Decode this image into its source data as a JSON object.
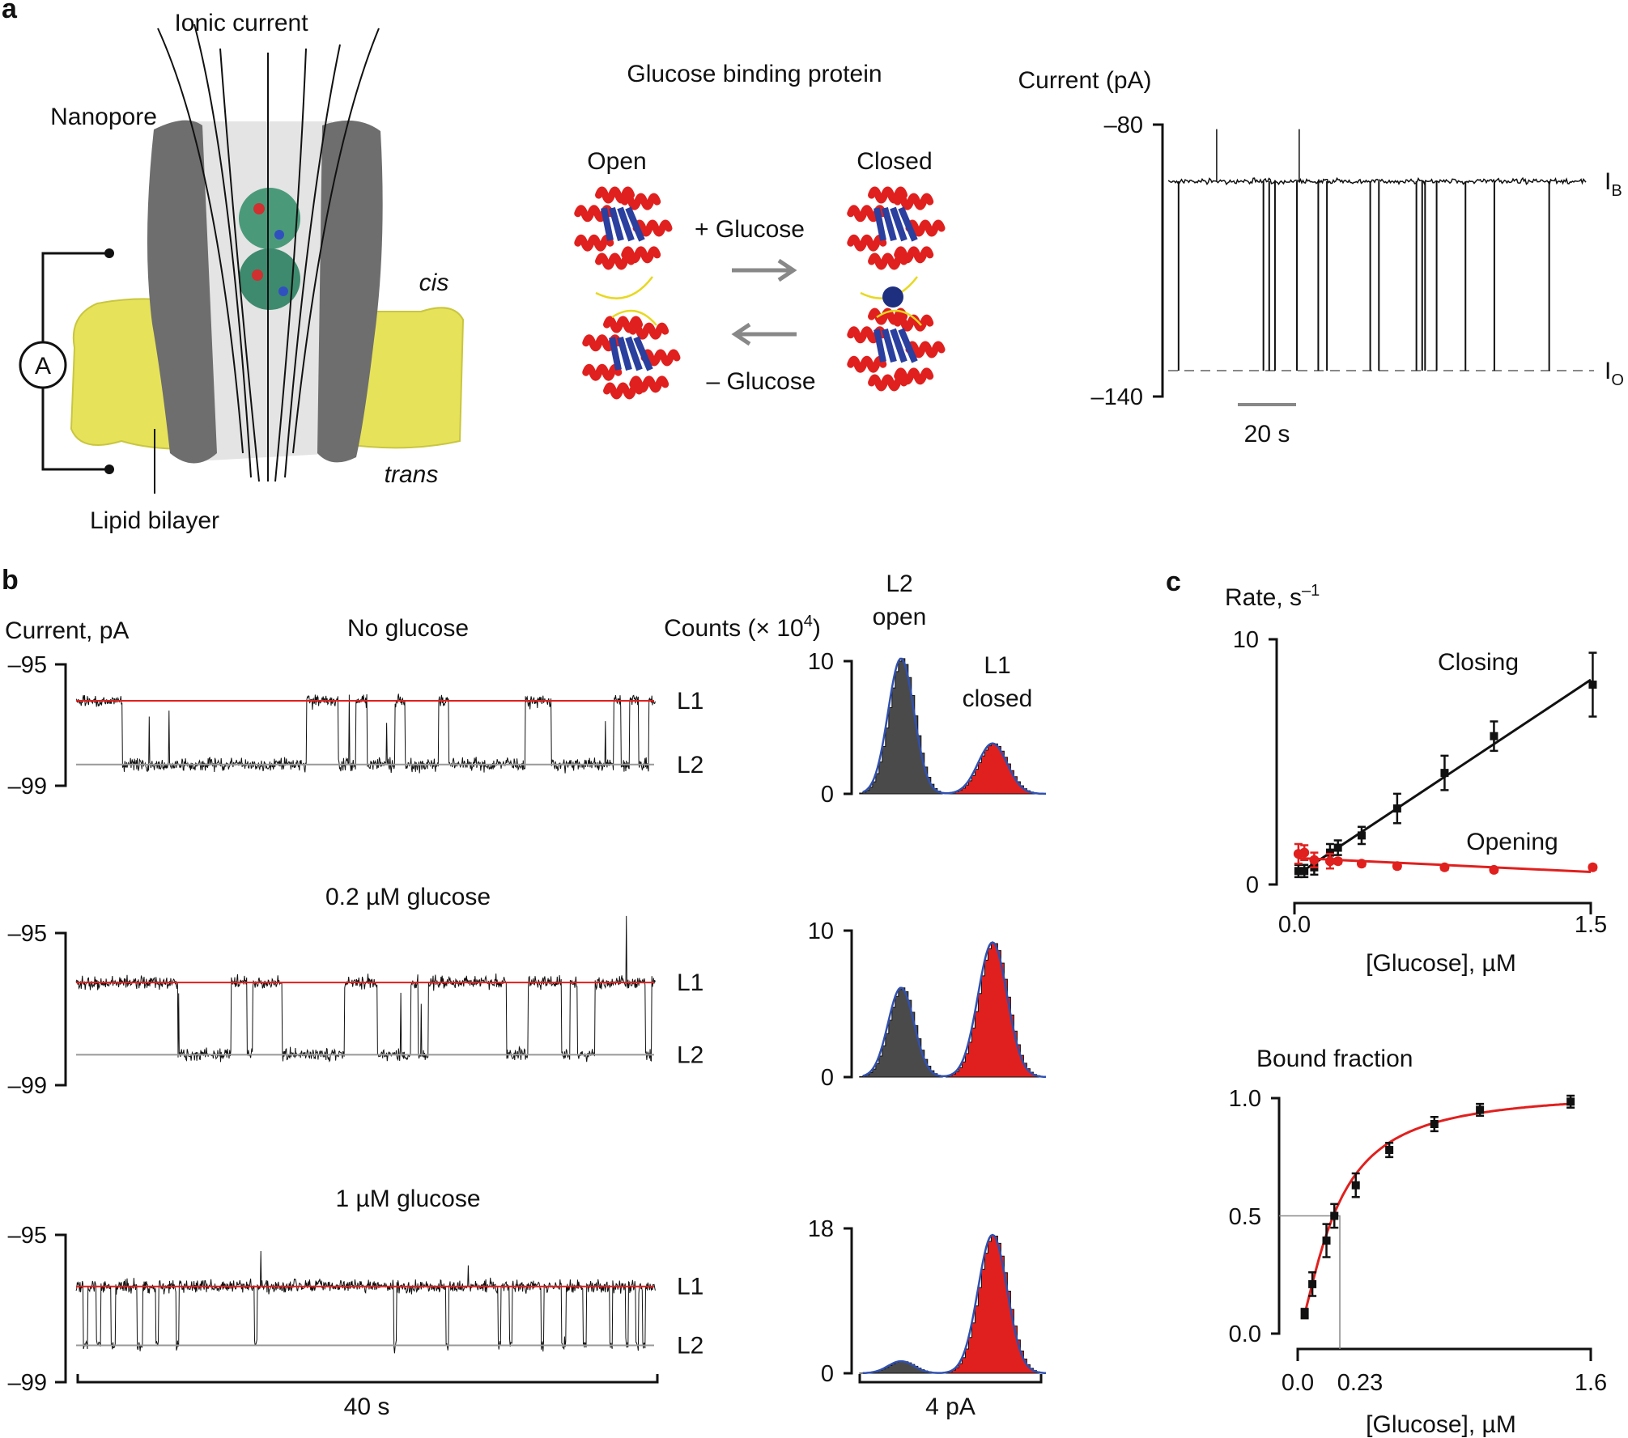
{
  "panel_a": {
    "label": "a",
    "ionic_current": "Ionic current",
    "nanopore": "Nanopore",
    "cis": "cis",
    "trans": "trans",
    "lipid_bilayer": "Lipid bilayer",
    "ammeter": "A",
    "protein_title": "Glucose binding protein",
    "open": "Open",
    "closed": "Closed",
    "plus_glucose": "+ Glucose",
    "minus_glucose": "– Glucose",
    "colors": {
      "pore": "#6e6e6e",
      "bilayer": "#e6e35a",
      "helix": "#e0201e",
      "sheet": "#2a3f9e",
      "loop": "#e8d820"
    }
  },
  "panel_b": {
    "label": "b"
  },
  "panel_c": {
    "label": "c"
  },
  "chart_data": [
    {
      "type": "line",
      "id": "current-trace-a",
      "ylabel": "Current (pA)",
      "yticks": [
        "–80",
        "–140"
      ],
      "ylim": [
        -140,
        -80
      ],
      "levels": {
        "IB": -92.5,
        "IO": -134.3
      },
      "level_labels": {
        "IB_main": "I",
        "IB_sub": "B",
        "IO_main": "I",
        "IO_sub": "O"
      },
      "duration_s": 145,
      "scale_bar": "20 s",
      "open_events_s": [
        3.6,
        33,
        35,
        37,
        44.6,
        52,
        55,
        70,
        73,
        86,
        88,
        89,
        93,
        103,
        113,
        132
      ],
      "spikes_up_s": [
        16.8,
        45.4
      ]
    },
    {
      "type": "line",
      "id": "traces-b",
      "ylabel": "Current, pA",
      "yticks": [
        "–95",
        "–99"
      ],
      "ylim": [
        -99,
        -95
      ],
      "duration_s": 40,
      "scale_bar": "40 s",
      "level_names": [
        "L1",
        "L2"
      ],
      "traces": [
        {
          "title": "No glucose",
          "L1": -96.2,
          "L2": -98.3,
          "state_L1_intervals_s": [
            [
              0,
              3.2
            ],
            [
              15.9,
              18.1
            ],
            [
              19.3,
              20.1
            ],
            [
              22.0,
              22.7
            ],
            [
              25.0,
              25.7
            ],
            [
              31.0,
              32.8
            ],
            [
              37.1,
              37.6
            ],
            [
              38.2,
              38.8
            ],
            [
              39.5,
              40
            ]
          ]
        },
        {
          "title": "0.2 µM glucose",
          "L1": -96.3,
          "L2": -98.2,
          "state_L2_intervals_s": [
            [
              7.0,
              10.7
            ],
            [
              11.8,
              12.2
            ],
            [
              14.2,
              18.5
            ],
            [
              20.8,
              23.1
            ],
            [
              23.6,
              24.3
            ],
            [
              29.7,
              31.2
            ],
            [
              33.5,
              34.1
            ],
            [
              34.6,
              35.8
            ],
            [
              39.3,
              39.7
            ]
          ]
        },
        {
          "title": "1 µM glucose",
          "L1": -96.4,
          "L2": -98.0,
          "state_L2_intervals_s": [
            [
              0.5,
              0.8
            ],
            [
              1.4,
              1.7
            ],
            [
              2.4,
              2.7
            ],
            [
              4.2,
              4.6
            ],
            [
              5.5,
              5.7
            ],
            [
              6.9,
              7.1
            ],
            [
              12.3,
              12.5
            ],
            [
              21.9,
              22.1
            ],
            [
              25.5,
              25.7
            ],
            [
              29.1,
              29.3
            ],
            [
              29.9,
              30.1
            ],
            [
              32.1,
              32.3
            ],
            [
              33.5,
              33.8
            ],
            [
              35.0,
              35.2
            ],
            [
              36.8,
              37.0
            ],
            [
              37.9,
              38.1
            ],
            [
              38.6,
              38.8
            ],
            [
              39.1,
              39.3
            ]
          ]
        }
      ]
    },
    {
      "type": "bar",
      "id": "histograms-b",
      "ylabel_main": "Counts (× 10",
      "ylabel_sup": "4",
      "ylabel_end": ")",
      "peak_labels": {
        "L2_line1": "L2",
        "L2_line2": "open",
        "L1_line1": "L1",
        "L1_line2": "closed"
      },
      "scale_bar": "4 pA",
      "colors": {
        "L2": "#4a4a4a",
        "L1": "#e0201e",
        "fit": "#3050b0"
      },
      "histograms": [
        {
          "ymax": 10,
          "yticks": [
            "10",
            "0"
          ],
          "peak_L2": 10.2,
          "peak_L1": 3.8
        },
        {
          "ymax": 10,
          "yticks": [
            "10",
            "0"
          ],
          "peak_L2": 6.1,
          "peak_L1": 9.2
        },
        {
          "ymax": 18,
          "yticks": [
            "18",
            "0"
          ],
          "peak_L2": 1.5,
          "peak_L1": 17.2
        }
      ]
    },
    {
      "type": "scatter",
      "id": "rates-c",
      "ylabel_main": "Rate, s",
      "ylabel_sup": "–1",
      "xlabel": "[Glucose], µM",
      "xlim": [
        0,
        1.5
      ],
      "ylim": [
        0,
        10
      ],
      "xticks": [
        "0.0",
        "1.5"
      ],
      "yticks": [
        "10",
        "0"
      ],
      "series": [
        {
          "name": "Closing",
          "color": "#111111",
          "x": [
            0.02,
            0.05,
            0.1,
            0.18,
            0.22,
            0.34,
            0.52,
            0.76,
            1.01,
            1.51
          ],
          "y": [
            0.55,
            0.55,
            0.7,
            1.3,
            1.5,
            2.0,
            3.1,
            4.55,
            6.05,
            8.15
          ],
          "err": [
            0.25,
            0.25,
            0.3,
            0.35,
            0.3,
            0.35,
            0.6,
            0.7,
            0.6,
            1.3
          ]
        },
        {
          "name": "Opening",
          "color": "#e0201e",
          "x": [
            0.02,
            0.05,
            0.1,
            0.18,
            0.22,
            0.34,
            0.52,
            0.76,
            1.01,
            1.51
          ],
          "y": [
            1.25,
            1.3,
            1.0,
            0.95,
            0.95,
            0.85,
            0.75,
            0.7,
            0.6,
            0.7
          ],
          "err": [
            0.4,
            0.3,
            0.3,
            0.3,
            0.1,
            0.1,
            0.1,
            0.1,
            0.1,
            0.1
          ]
        }
      ]
    },
    {
      "type": "scatter",
      "id": "bound-fraction-c",
      "ylabel": "Bound fraction",
      "xlabel": "[Glucose], µM",
      "xlim": [
        0,
        1.6
      ],
      "ylim": [
        0,
        1.0
      ],
      "xticks": [
        "0.0",
        "0.23",
        "1.6"
      ],
      "yticks": [
        "1.0",
        "0.5",
        "0.0"
      ],
      "half_saturation": 0.23,
      "fit_color": "#e0201e",
      "x": [
        0.038,
        0.08,
        0.157,
        0.2,
        0.317,
        0.5,
        0.746,
        0.995,
        1.49
      ],
      "y": [
        0.085,
        0.21,
        0.395,
        0.5,
        0.63,
        0.78,
        0.89,
        0.95,
        0.985
      ],
      "err": [
        0.01,
        0.04,
        0.06,
        0.04,
        0.04,
        0.02,
        0.02,
        0.015,
        0.015
      ]
    }
  ]
}
